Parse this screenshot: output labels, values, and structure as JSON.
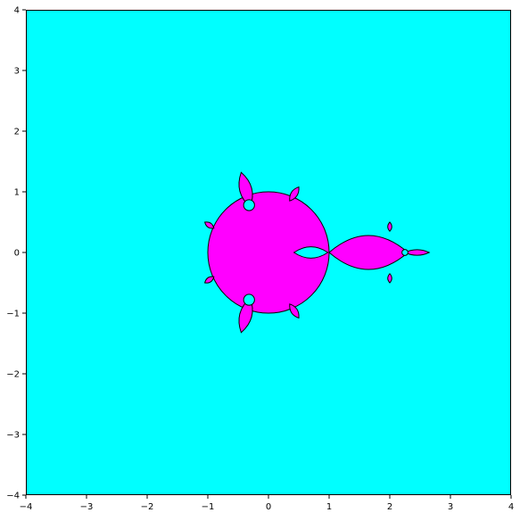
{
  "chart_data": {
    "type": "heatmap",
    "title": "",
    "xlabel": "",
    "ylabel": "",
    "xlim": [
      -4,
      4
    ],
    "ylim": [
      -4,
      4
    ],
    "xticks": [
      -4,
      -3,
      -2,
      -1,
      0,
      1,
      2,
      3,
      4
    ],
    "yticks": [
      -4,
      -3,
      -2,
      -1,
      0,
      1,
      2,
      3,
      4
    ],
    "xtick_labels": [
      "−4",
      "−3",
      "−2",
      "−1",
      "0",
      "1",
      "2",
      "3",
      "4"
    ],
    "ytick_labels": [
      "−4",
      "−3",
      "−2",
      "−1",
      "0",
      "1",
      "2",
      "3",
      "4"
    ],
    "grid": false,
    "legend": "none",
    "colors": {
      "background_region": "#00ffff",
      "set_region": "#ff00ff",
      "boundary": "#000000"
    },
    "regions": [
      {
        "shape": "circle",
        "center": [
          0,
          0
        ],
        "radius": 1.0
      },
      {
        "shape": "lobe",
        "from": [
          1.0,
          0
        ],
        "to": [
          2.3,
          0
        ],
        "half_width": 0.42
      },
      {
        "shape": "lobe",
        "from": [
          2.25,
          0
        ],
        "to": [
          2.65,
          0
        ],
        "half_width": 0.07
      },
      {
        "shape": "lobe",
        "from": [
          -0.3,
          0.75
        ],
        "to": [
          -0.45,
          1.32
        ],
        "half_width": 0.15
      },
      {
        "shape": "lobe",
        "from": [
          -0.3,
          -0.75
        ],
        "to": [
          -0.45,
          -1.32
        ],
        "half_width": 0.15
      },
      {
        "shape": "lobe",
        "from": [
          0.35,
          0.85
        ],
        "to": [
          0.5,
          1.08
        ],
        "half_width": 0.08
      },
      {
        "shape": "lobe",
        "from": [
          0.35,
          -0.85
        ],
        "to": [
          0.5,
          -1.08
        ],
        "half_width": 0.08
      },
      {
        "shape": "lobe",
        "from": [
          -0.9,
          0.4
        ],
        "to": [
          -1.05,
          0.5
        ],
        "half_width": 0.06
      },
      {
        "shape": "lobe",
        "from": [
          -0.9,
          -0.4
        ],
        "to": [
          -1.05,
          -0.5
        ],
        "half_width": 0.06
      },
      {
        "shape": "lobe",
        "from": [
          2.0,
          0.35
        ],
        "to": [
          2.0,
          0.5
        ],
        "half_width": 0.05
      },
      {
        "shape": "lobe",
        "from": [
          2.0,
          -0.35
        ],
        "to": [
          2.0,
          -0.5
        ],
        "half_width": 0.05
      }
    ],
    "holes": [
      {
        "shape": "lobe",
        "from": [
          0.42,
          0
        ],
        "to": [
          0.98,
          0
        ],
        "half_width": 0.14
      },
      {
        "shape": "circle",
        "center": [
          -0.32,
          0.78
        ],
        "radius": 0.09
      },
      {
        "shape": "circle",
        "center": [
          -0.32,
          -0.78
        ],
        "radius": 0.09
      },
      {
        "shape": "circle",
        "center": [
          2.25,
          0
        ],
        "radius": 0.05
      }
    ]
  }
}
